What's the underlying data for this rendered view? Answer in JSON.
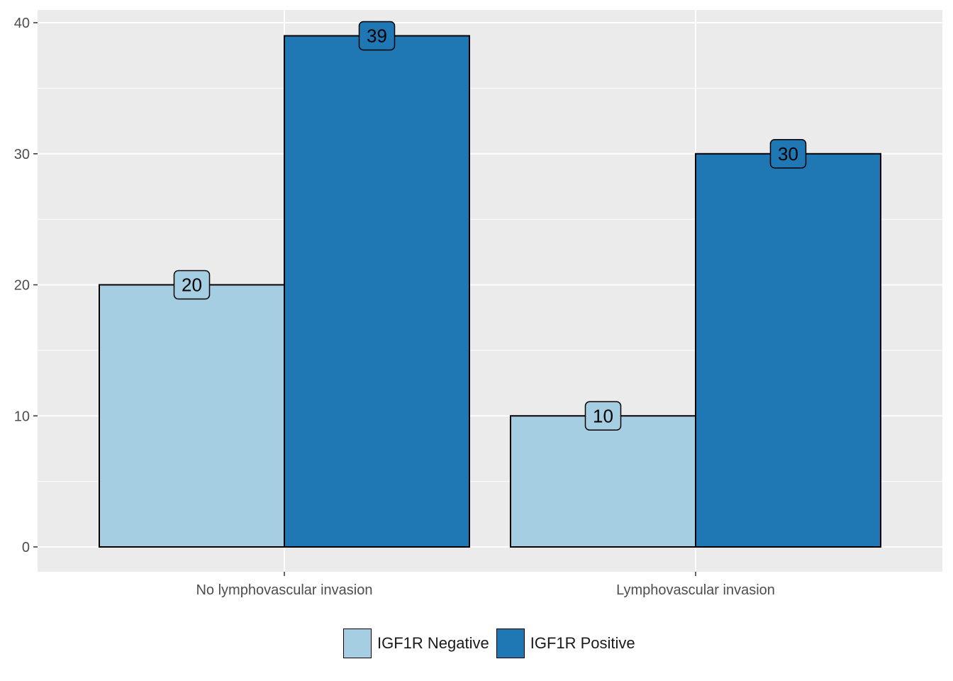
{
  "chart_data": {
    "type": "bar",
    "categories": [
      "No lymphovascular invasion",
      "Lymphovascular invasion"
    ],
    "series": [
      {
        "name": "IGF1R Negative",
        "values": [
          20,
          10
        ],
        "color": "#a6cee3"
      },
      {
        "name": "IGF1R Positive",
        "values": [
          39,
          30
        ],
        "color": "#1f78b4"
      }
    ],
    "title": "",
    "xlabel": "",
    "ylabel": "",
    "ylim": [
      0,
      40
    ],
    "yticks": [
      0,
      10,
      20,
      30,
      40
    ],
    "grid": true,
    "legend_position": "bottom",
    "panel_background": "#ebebeb"
  },
  "legend": {
    "items": [
      {
        "label": "IGF1R Negative",
        "color": "#a6cee3"
      },
      {
        "label": "IGF1R Positive",
        "color": "#1f78b4"
      }
    ]
  }
}
